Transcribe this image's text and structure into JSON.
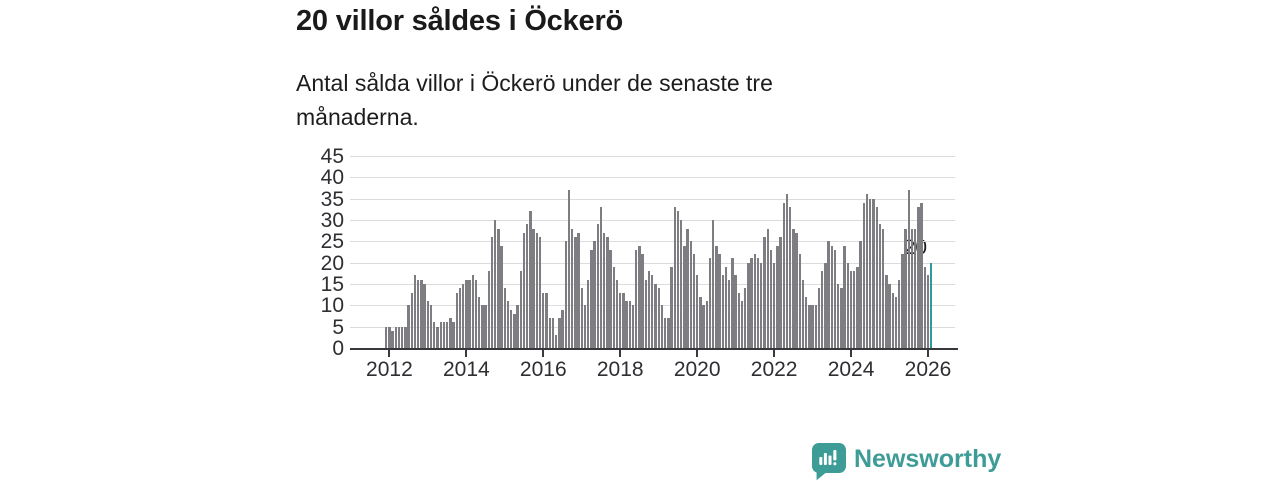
{
  "header": {
    "title": "20 villor såldes i Öckerö",
    "subtitle": "Antal sålda villor i Öckerö under de senaste tre månaderna."
  },
  "chart_data": {
    "type": "bar",
    "title": "20 villor såldes i Öckerö",
    "subtitle": "Antal sålda villor i Öckerö under de senaste tre månaderna.",
    "x_unit": "month",
    "x_start": "2011-12",
    "x_end": "2026-02",
    "values": [
      5,
      5,
      4,
      5,
      5,
      5,
      5,
      10,
      13,
      17,
      16,
      16,
      15,
      11,
      10,
      6,
      5,
      6,
      6,
      6,
      7,
      6,
      13,
      14,
      15,
      16,
      16,
      17,
      16,
      12,
      10,
      10,
      18,
      26,
      30,
      28,
      24,
      14,
      11,
      9,
      8,
      10,
      18,
      27,
      29,
      32,
      28,
      27,
      26,
      13,
      13,
      7,
      7,
      3,
      7,
      9,
      25,
      37,
      28,
      26,
      27,
      14,
      10,
      16,
      23,
      25,
      29,
      33,
      27,
      26,
      23,
      19,
      16,
      13,
      13,
      11,
      11,
      10,
      23,
      24,
      22,
      16,
      18,
      17,
      15,
      14,
      10,
      7,
      7,
      19,
      33,
      32,
      30,
      24,
      28,
      25,
      22,
      17,
      12,
      10,
      11,
      21,
      30,
      24,
      22,
      17,
      19,
      16,
      21,
      17,
      13,
      11,
      14,
      20,
      21,
      22,
      21,
      20,
      26,
      28,
      23,
      20,
      24,
      26,
      34,
      36,
      33,
      28,
      27,
      22,
      16,
      12,
      10,
      10,
      10,
      14,
      18,
      20,
      25,
      24,
      23,
      15,
      14,
      24,
      20,
      18,
      18,
      19,
      25,
      34,
      36,
      35,
      35,
      33,
      29,
      28,
      17,
      15,
      13,
      12,
      16,
      22,
      28,
      37,
      28,
      28,
      33,
      34,
      19,
      17,
      20
    ],
    "highlight_last": true,
    "highlight_label": "20",
    "ylim": [
      0,
      45
    ],
    "yticks": [
      0,
      5,
      10,
      15,
      20,
      25,
      30,
      35,
      40,
      45
    ],
    "xticks": [
      "2012",
      "2014",
      "2016",
      "2018",
      "2020",
      "2022",
      "2024",
      "2026"
    ],
    "grid": true,
    "legend": "none",
    "bar_color": "#7d7d82",
    "highlight_color": "#2a9d99",
    "axis_color": "#38383c",
    "grid_color": "#dcdcde"
  },
  "branding": {
    "logo_text": "Newsworthy",
    "logo_color": "#3e9c97",
    "logo_icon": "speech-bubble-bar-chart"
  }
}
